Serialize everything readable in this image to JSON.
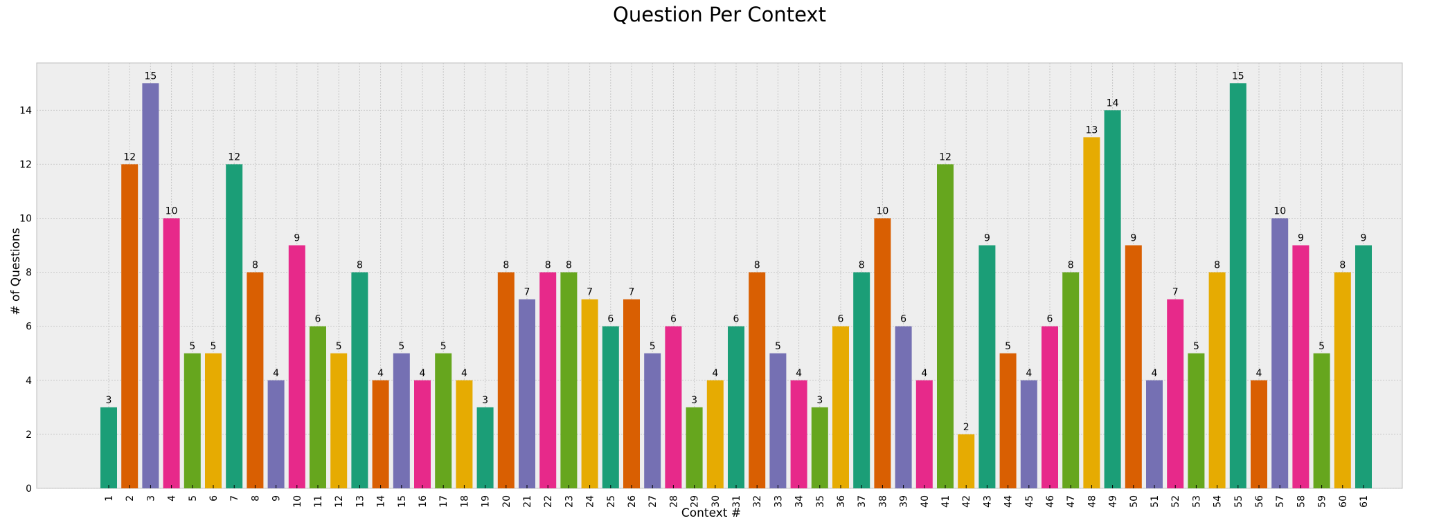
{
  "chart_data": {
    "type": "bar",
    "title": "Question Per Context",
    "xlabel": "Context #",
    "ylabel": "# of Questions",
    "ylim": [
      0,
      15.75
    ],
    "yticks": [
      0,
      2,
      4,
      6,
      8,
      10,
      12,
      14
    ],
    "grid": true,
    "categories": [
      "1",
      "2",
      "3",
      "4",
      "5",
      "6",
      "7",
      "8",
      "9",
      "10",
      "11",
      "12",
      "13",
      "14",
      "15",
      "16",
      "17",
      "18",
      "19",
      "20",
      "21",
      "22",
      "23",
      "24",
      "25",
      "26",
      "27",
      "28",
      "29",
      "30",
      "31",
      "32",
      "33",
      "34",
      "35",
      "36",
      "37",
      "38",
      "39",
      "40",
      "41",
      "42",
      "43",
      "44",
      "45",
      "46",
      "47",
      "48",
      "49",
      "50",
      "51",
      "52",
      "53",
      "54",
      "55",
      "56",
      "57",
      "58",
      "59",
      "60",
      "61"
    ],
    "values": [
      3,
      12,
      15,
      10,
      5,
      5,
      12,
      8,
      4,
      9,
      6,
      5,
      8,
      4,
      5,
      4,
      5,
      4,
      3,
      8,
      7,
      8,
      8,
      7,
      6,
      7,
      5,
      6,
      3,
      4,
      6,
      8,
      5,
      4,
      3,
      6,
      8,
      10,
      6,
      4,
      12,
      2,
      9,
      5,
      4,
      6,
      8,
      13,
      14,
      9,
      4,
      7,
      5,
      8,
      15,
      4,
      10,
      9,
      5,
      8,
      9
    ],
    "palette": [
      "#1b9e77",
      "#d95f02",
      "#7570b3",
      "#e7298a",
      "#66a61e",
      "#e6ab02"
    ],
    "background": "#eeeeee"
  }
}
